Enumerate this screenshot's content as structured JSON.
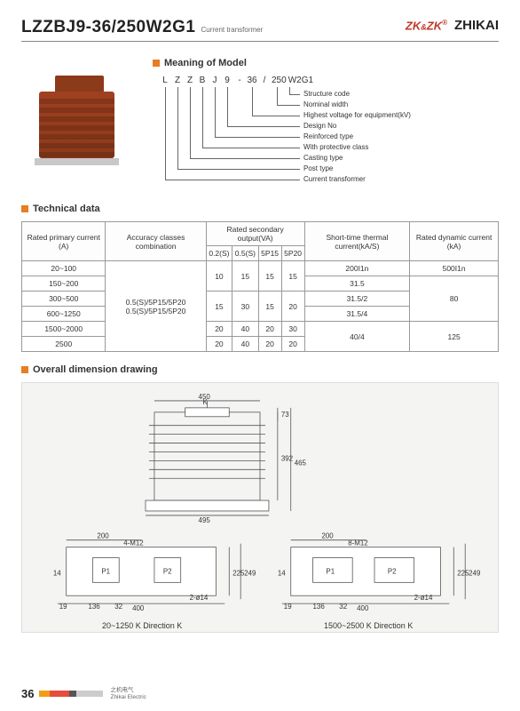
{
  "header": {
    "model": "LZZBJ9-36/250W2G1",
    "subtitle": "Current transformer",
    "logo_main": "ZK",
    "logo_amp": "&",
    "logo_sub": "ZK",
    "brand": "ZHIKAI"
  },
  "meaning": {
    "title": "Meaning of Model",
    "chars": [
      "L",
      "Z",
      "Z",
      "B",
      "J",
      "9",
      "-",
      "36",
      "/",
      "250",
      "W2G1"
    ],
    "labels": [
      "Structure code",
      "Nominal width",
      "Highest voltage for equipment(kV)",
      "Design No",
      "Reinforced type",
      "With protective class",
      "Casting type",
      "Post type",
      "Current transformer"
    ]
  },
  "technical": {
    "title": "Technical data",
    "headers": {
      "c1": "Rated primary current (A)",
      "c2": "Accuracy classes combination",
      "g3": "Rated secondary output(VA)",
      "c3a": "0.2(S)",
      "c3b": "0.5(S)",
      "c3c": "5P15",
      "c3d": "5P20",
      "c4": "Short-time thermal current(kA/S)",
      "c5": "Rated dynamic current (kA)"
    },
    "accuracy": "0.5(S)/5P15/5P20\n0.5(S)/5P15/5P20",
    "rows": [
      {
        "pri": "20~100",
        "o": [
          "",
          "",
          "",
          ""
        ],
        "st": "200I1n",
        "dy": "500I1n"
      },
      {
        "pri": "150~200",
        "o": [
          "10",
          "15",
          "15",
          "15"
        ],
        "st": "31.5",
        "dy": ""
      },
      {
        "pri": "300~500",
        "o": [
          "",
          "",
          "",
          ""
        ],
        "st": "31.5/2",
        "dy": "80"
      },
      {
        "pri": "600~1250",
        "o": [
          "15",
          "30",
          "15",
          "20"
        ],
        "st": "31.5/4",
        "dy": ""
      },
      {
        "pri": "1500~2000",
        "o": [
          "20",
          "40",
          "20",
          "30"
        ],
        "st": "",
        "dy": ""
      },
      {
        "pri": "2500",
        "o": [
          "20",
          "40",
          "20",
          "20"
        ],
        "st": "40/4",
        "dy": "125"
      }
    ]
  },
  "dimension": {
    "title": "Overall dimension drawing",
    "top": {
      "w450": "450",
      "w495": "495",
      "h392": "392",
      "h465": "465",
      "h73": "73",
      "k": "K"
    },
    "left": {
      "cap": "20~1250 K   Direction K",
      "w200": "200",
      "w400": "400",
      "h225": "225",
      "h249": "249",
      "d19": "19",
      "d14": "14",
      "d136": "136",
      "d32": "32",
      "m": "4-M12",
      "phi": "2-ø14",
      "p1": "P1",
      "p2": "P2"
    },
    "right": {
      "cap": "1500~2500 K   Direction K",
      "w200": "200",
      "w400": "400",
      "h225": "225",
      "h249": "249",
      "d19": "19",
      "d14": "14",
      "d136": "136",
      "d32": "32",
      "m": "8-M12",
      "phi": "2-ø14",
      "p1": "P1",
      "p2": "P2"
    }
  },
  "footer": {
    "page": "36",
    "cn": "之机电气",
    "en": "Zhikai Electric",
    "bars": [
      "#f39c12",
      "#e74c3c",
      "#555555",
      "#cccccc"
    ]
  }
}
